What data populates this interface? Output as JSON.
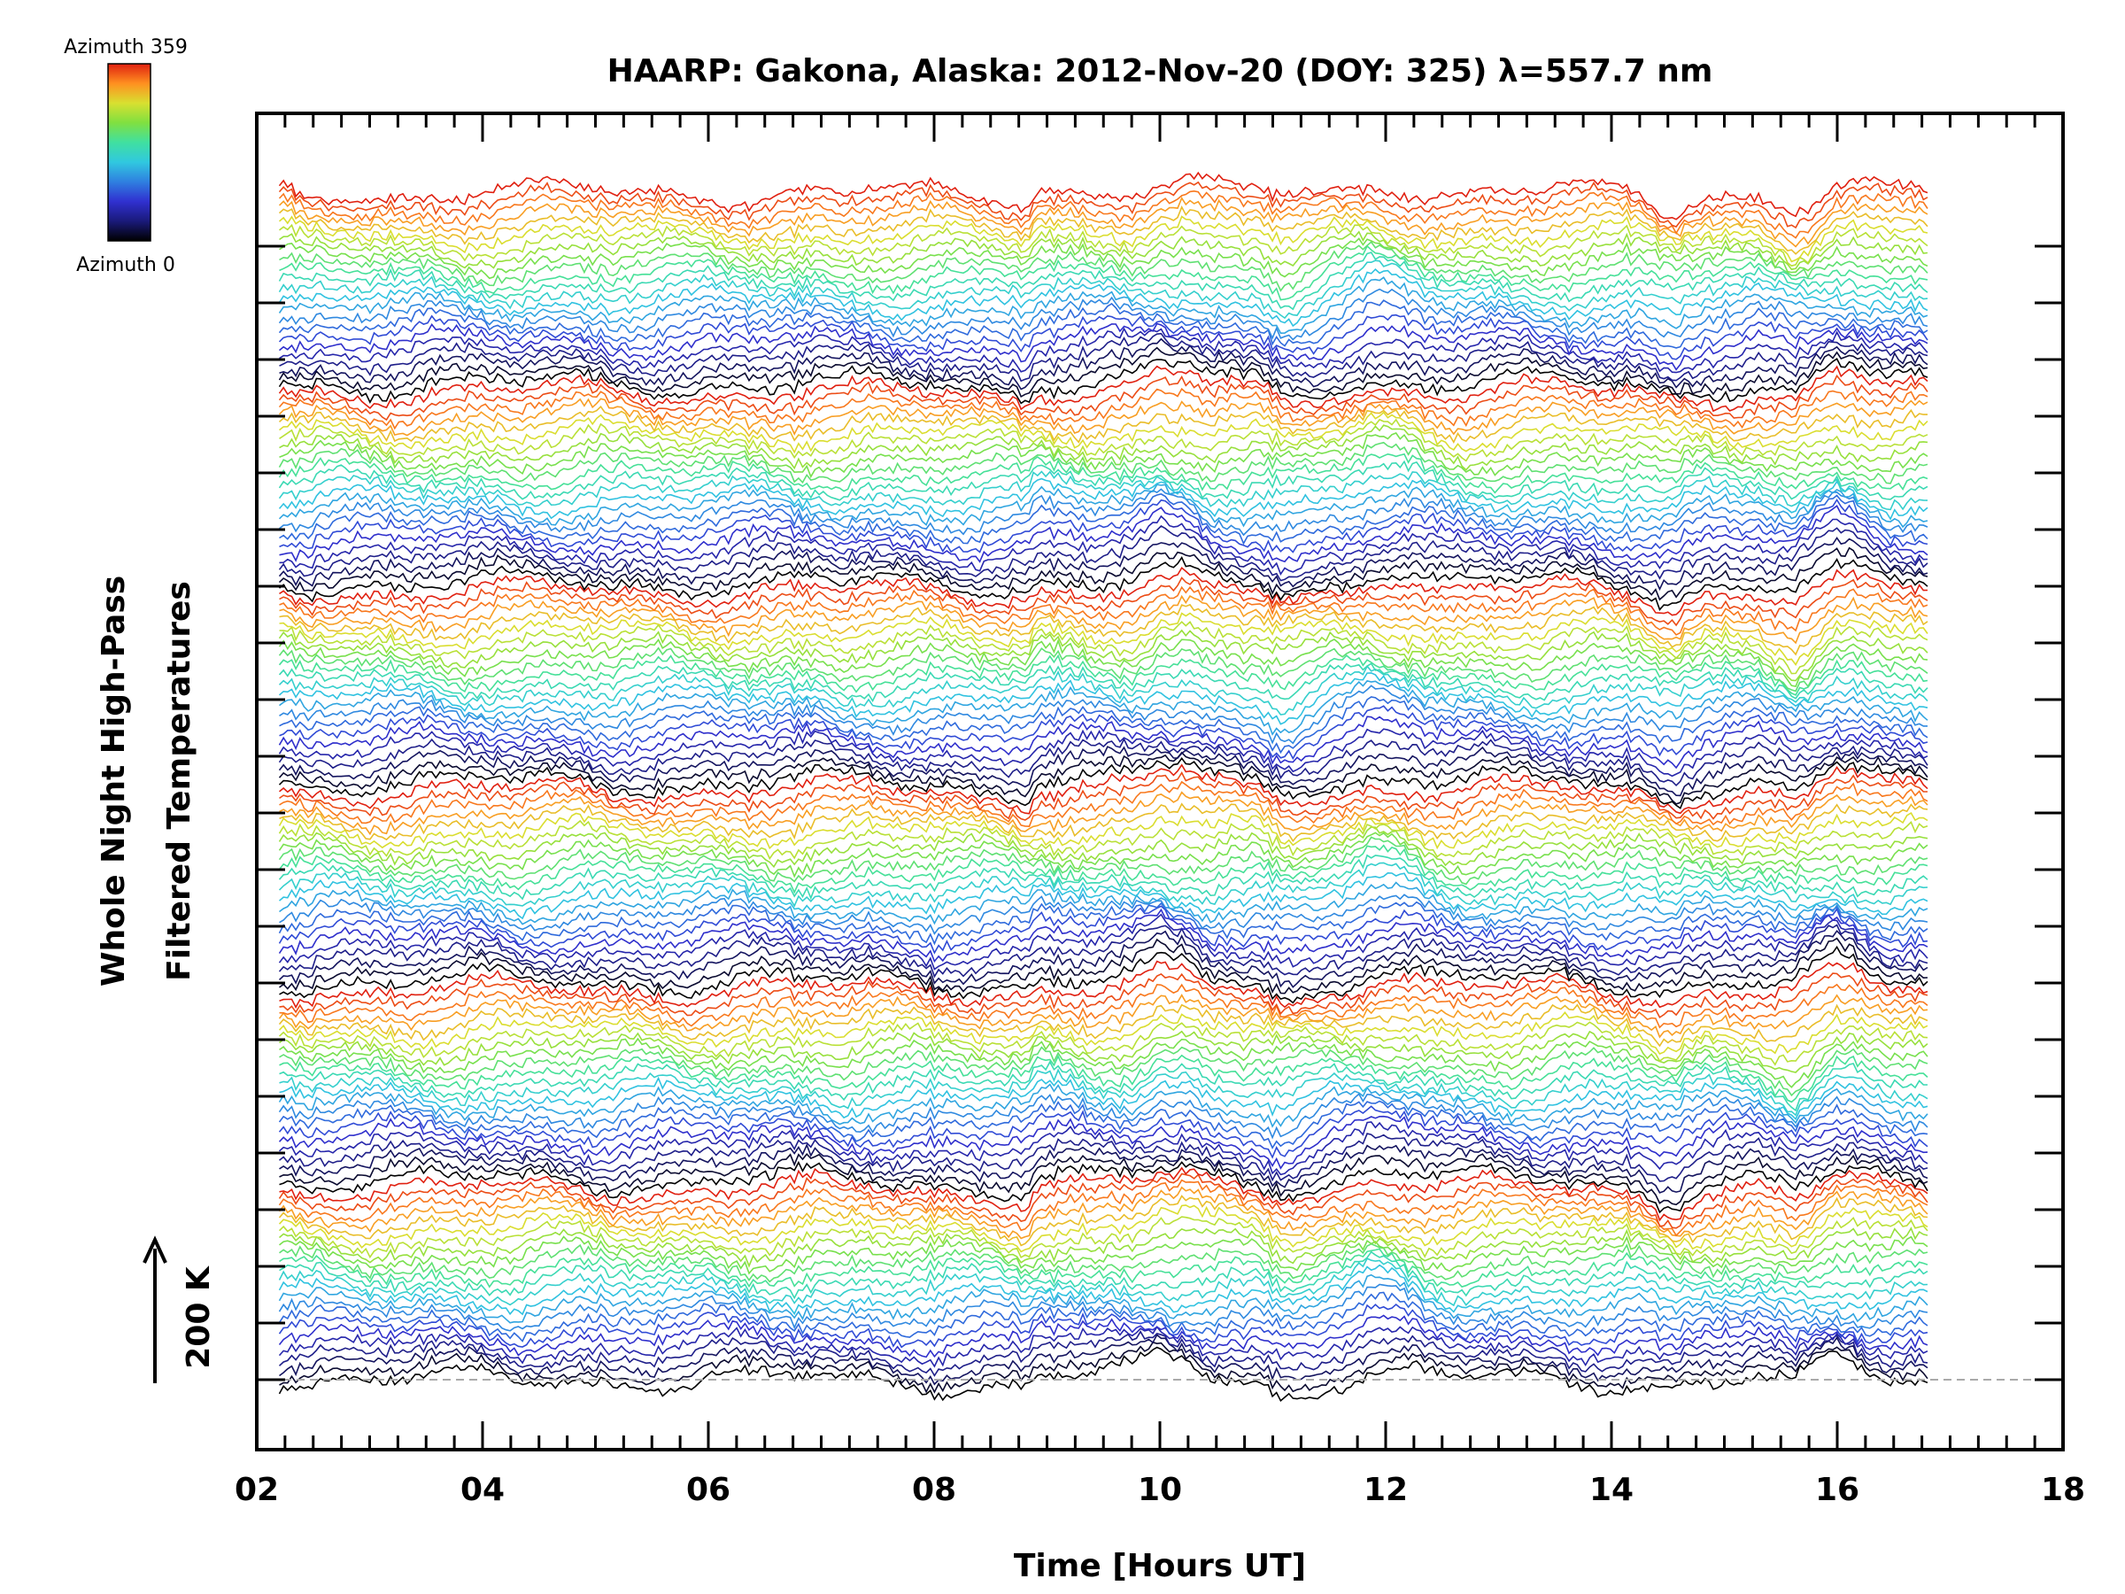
{
  "chart_data": {
    "type": "line",
    "title": "HAARP: Gakona,  Alaska: 2012-Nov-20 (DOY: 325) λ=557.7 nm",
    "xlabel": "Time [Hours UT]",
    "ylabel_line1": "Whole Night High-Pass",
    "ylabel_line2": "Filtered Temperatures",
    "scale_label": "200 K",
    "scale_value_K": 200,
    "xlim": [
      2,
      18
    ],
    "x_tick_labels": [
      "02",
      "04",
      "06",
      "08",
      "10",
      "12",
      "14",
      "16",
      "18"
    ],
    "data_time_range_hours": [
      2.2,
      16.8
    ],
    "trace_count": 144,
    "traces_per_azimuth_sweep": 24,
    "colorbar": {
      "label_top": "Azimuth 359",
      "label_bottom": "Azimuth 0",
      "range": [
        0,
        359
      ],
      "colormap": [
        "#000000",
        "#1a1a7a",
        "#3030d0",
        "#2f7fe0",
        "#30c8e0",
        "#40e0a0",
        "#80e040",
        "#d8e030",
        "#ff9020",
        "#e02010"
      ]
    },
    "baseline_style": "dashed",
    "features": [
      {
        "time_hours": 8.85,
        "type": "step"
      },
      {
        "time_hours": 10.1,
        "type": "peak"
      },
      {
        "time_hours": 11.15,
        "type": "dip"
      },
      {
        "time_hours": 12.0,
        "type": "peak"
      },
      {
        "time_hours": 14.5,
        "type": "dip"
      },
      {
        "time_hours": 15.65,
        "type": "dip"
      },
      {
        "time_hours": 16.0,
        "type": "peak"
      }
    ]
  }
}
